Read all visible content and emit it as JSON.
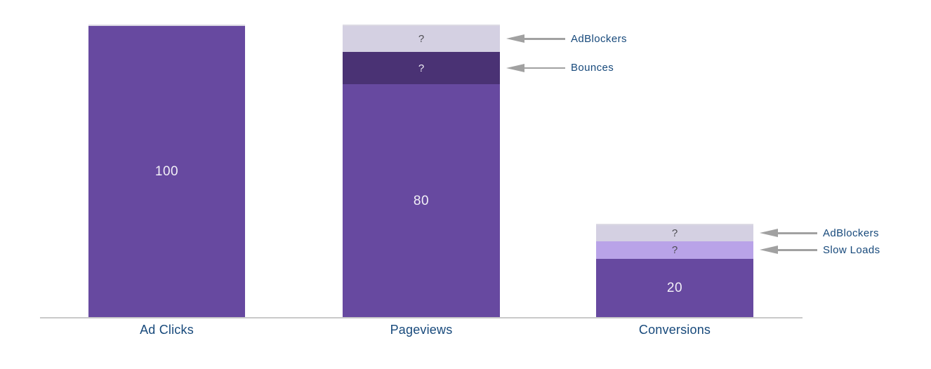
{
  "background_color": "#FFFFFF",
  "chart_data": {
    "type": "bar",
    "variant": "stacked-funnel",
    "title": "",
    "xlabel": "",
    "ylabel": "",
    "grid": false,
    "legend": "none",
    "ylim": [
      0,
      104
    ],
    "categories": [
      "Ad Clicks",
      "Pageviews",
      "Conversions"
    ],
    "colors": {
      "bar_main_purple": "#6749A0",
      "bar_dark_purple": "#4A3274",
      "bar_lavender": "#D4D0E2",
      "bar_light_purple": "#B9A3E8",
      "value_text_light": "#F2F0F7",
      "question_text_dark": "#4D4D52",
      "annotation_navy": "#17497B",
      "arrow_gray": "#A1A1A1",
      "axis_line_gray": "#C9C9C9"
    },
    "bars": [
      {
        "id": "ad-clicks",
        "category": "Ad Clicks",
        "segments": [
          {
            "name": "ad-clicks-total",
            "label": "100",
            "value": 100,
            "value_is_estimate": false,
            "color": "#6749A0",
            "label_color": "#F2F0F7",
            "label_size": "big"
          }
        ]
      },
      {
        "id": "pageviews",
        "category": "Pageviews",
        "segments": [
          {
            "name": "adblockers",
            "label": "?",
            "value": 9,
            "value_is_estimate": true,
            "color": "#D4D0E2",
            "label_color": "#4D4D52",
            "label_size": "q"
          },
          {
            "name": "bounces",
            "label": "?",
            "value": 11,
            "value_is_estimate": true,
            "color": "#4A3274",
            "label_color": "#EFEDF5",
            "label_size": "q"
          },
          {
            "name": "pageviews-main",
            "label": "80",
            "value": 80,
            "value_is_estimate": false,
            "color": "#6749A0",
            "label_color": "#F2F0F7",
            "label_size": "big"
          }
        ]
      },
      {
        "id": "conversions",
        "category": "Conversions",
        "segments": [
          {
            "name": "adblockers",
            "label": "?",
            "value": 5.5,
            "value_is_estimate": true,
            "color": "#D4D0E2",
            "label_color": "#4D4D52",
            "label_size": "q"
          },
          {
            "name": "slow-loads",
            "label": "?",
            "value": 6,
            "value_is_estimate": true,
            "color": "#B9A3E8",
            "label_color": "#4D4D52",
            "label_size": "q"
          },
          {
            "name": "conversions-main",
            "label": "20",
            "value": 20,
            "value_is_estimate": false,
            "color": "#6749A0",
            "label_color": "#F2F0F7",
            "label_size": "big"
          }
        ]
      }
    ],
    "annotations": [
      {
        "bar": "pageviews",
        "segment": "adblockers",
        "text": "AdBlockers"
      },
      {
        "bar": "pageviews",
        "segment": "bounces",
        "text": "Bounces"
      },
      {
        "bar": "conversions",
        "segment": "adblockers",
        "text": "AdBlockers"
      },
      {
        "bar": "conversions",
        "segment": "slow-loads",
        "text": "Slow Loads"
      }
    ]
  }
}
